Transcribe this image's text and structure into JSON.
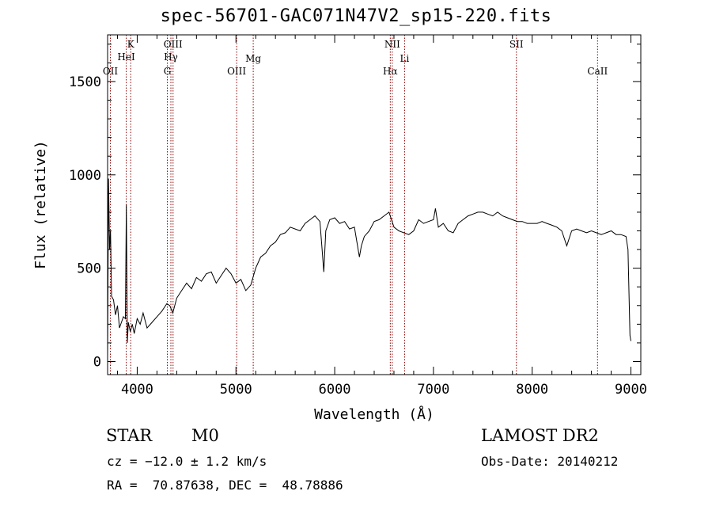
{
  "title": "spec-56701-GAC071N47V2_sp15-220.fits",
  "info": {
    "obj_class": "STAR",
    "obj_subclass": "M0",
    "cz": "cz = −12.0 ± 1.2 km/s",
    "radec": "RA =  70.87638, DEC =  48.78886",
    "survey": "LAMOST DR2",
    "obs_date": "Obs-Date: 20140212"
  },
  "colors": {
    "spectrum": "#000000",
    "line_marker": "#8b0000",
    "axis": "#000000"
  },
  "chart_data": {
    "type": "line",
    "title": "spec-56701-GAC071N47V2_sp15-220.fits",
    "xlabel": "Wavelength (Å)",
    "ylabel": "Flux (relative)",
    "xlim": [
      3700,
      9100
    ],
    "ylim": [
      -70,
      1750
    ],
    "xticks": [
      4000,
      5000,
      6000,
      7000,
      8000,
      9000
    ],
    "yticks": [
      0,
      500,
      1000,
      1500
    ],
    "grid": false,
    "series": [
      {
        "x": [
          3700,
          3710,
          3720,
          3730,
          3740,
          3760,
          3780,
          3800,
          3820,
          3840,
          3860,
          3880,
          3890,
          3900,
          3910,
          3930,
          3950,
          3970,
          4000,
          4030,
          4060,
          4100,
          4150,
          4200,
          4250,
          4300,
          4330,
          4360,
          4400,
          4450,
          4500,
          4550,
          4600,
          4650,
          4700,
          4750,
          4800,
          4850,
          4900,
          4950,
          5000,
          5050,
          5100,
          5150,
          5200,
          5250,
          5300,
          5350,
          5400,
          5450,
          5500,
          5550,
          5600,
          5650,
          5700,
          5750,
          5800,
          5850,
          5870,
          5890,
          5910,
          5950,
          6000,
          6050,
          6100,
          6150,
          6200,
          6250,
          6270,
          6300,
          6350,
          6400,
          6450,
          6500,
          6550,
          6563,
          6600,
          6650,
          6700,
          6750,
          6800,
          6850,
          6900,
          6950,
          7000,
          7020,
          7050,
          7100,
          7150,
          7200,
          7250,
          7300,
          7350,
          7400,
          7450,
          7500,
          7550,
          7600,
          7650,
          7700,
          7750,
          7800,
          7850,
          7900,
          7950,
          8000,
          8050,
          8100,
          8150,
          8200,
          8250,
          8300,
          8350,
          8400,
          8450,
          8500,
          8550,
          8600,
          8650,
          8700,
          8750,
          8800,
          8850,
          8900,
          8950,
          8970,
          8990,
          9000
        ],
        "values": [
          20,
          980,
          600,
          700,
          350,
          330,
          250,
          300,
          180,
          210,
          240,
          230,
          840,
          100,
          210,
          160,
          200,
          150,
          230,
          200,
          260,
          180,
          210,
          240,
          270,
          310,
          300,
          260,
          340,
          380,
          420,
          390,
          450,
          430,
          470,
          480,
          420,
          460,
          500,
          470,
          420,
          440,
          380,
          410,
          500,
          560,
          580,
          620,
          640,
          680,
          690,
          720,
          710,
          700,
          740,
          760,
          780,
          750,
          620,
          480,
          700,
          760,
          770,
          740,
          750,
          710,
          720,
          560,
          620,
          670,
          700,
          750,
          760,
          780,
          800,
          780,
          720,
          700,
          690,
          680,
          700,
          760,
          740,
          750,
          760,
          820,
          720,
          740,
          700,
          690,
          740,
          760,
          780,
          790,
          800,
          800,
          790,
          780,
          800,
          780,
          770,
          760,
          750,
          750,
          740,
          740,
          740,
          750,
          740,
          730,
          720,
          700,
          620,
          700,
          710,
          700,
          690,
          700,
          690,
          680,
          690,
          700,
          680,
          680,
          670,
          600,
          140,
          110
        ]
      }
    ],
    "lines": [
      {
        "name": "OII",
        "wavelength": 3728
      },
      {
        "name": "HeI",
        "wavelength": 3889
      },
      {
        "name": "K",
        "wavelength": 3934
      },
      {
        "name": "G",
        "wavelength": 4305
      },
      {
        "name": "Hγ",
        "wavelength": 4341
      },
      {
        "name": "OIII",
        "wavelength": 4363
      },
      {
        "name": "OIII",
        "wavelength": 5007
      },
      {
        "name": "Mg",
        "wavelength": 5175
      },
      {
        "name": "Hα",
        "wavelength": 6563
      },
      {
        "name": "NII",
        "wavelength": 6583
      },
      {
        "name": "Li",
        "wavelength": 6708
      },
      {
        "name": "SII",
        "wavelength": 7840
      },
      {
        "name": "CaII",
        "wavelength": 8662
      }
    ]
  }
}
